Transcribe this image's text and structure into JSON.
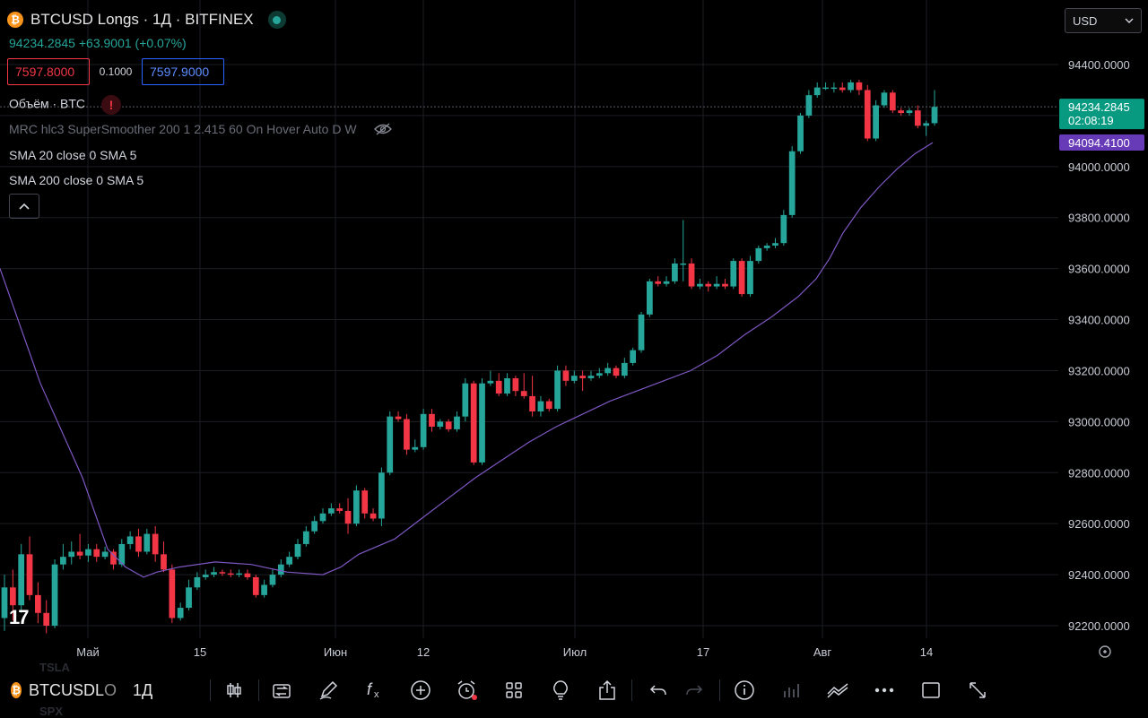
{
  "header": {
    "coin_glyph": "₿",
    "title": "BTCUSD Longs · 1Д · BITFINEX",
    "price_change": "94234.2845 +63.9001 (+0.07%)",
    "bid": "7597.8000",
    "spread": "0.1000",
    "ask": "7597.9000"
  },
  "indicators": {
    "volume": "Объём · BTC",
    "volume_warning": "!",
    "mrc": "MRC hlc3 SuperSmoother 200 1 2.415 60 On Hover Auto D W",
    "sma1": "SMA 20 close 0 SMA 5",
    "sma2": "SMA 200 close 0 SMA 5"
  },
  "currency_select": {
    "value": "USD"
  },
  "logo": "17",
  "background_symbols": [
    "TSLA",
    "SPX"
  ],
  "price_axis": {
    "ticks": [
      "94400.0000",
      "94200.0000",
      "94000.0000",
      "93800.0000",
      "93600.0000",
      "93400.0000",
      "93200.0000",
      "93000.0000",
      "92800.0000",
      "92600.0000",
      "92400.0000",
      "92200.0000"
    ],
    "last_price_label": "94234.2845",
    "countdown_label": "02:08:19",
    "sma_label": "94094.4100"
  },
  "time_axis": {
    "labels": [
      "Май",
      "15",
      "Июн",
      "12",
      "Июл",
      "17",
      "Авг",
      "14"
    ]
  },
  "colors": {
    "up": "#26a69a",
    "down": "#f23645",
    "sma": "#7e57c2",
    "grid": "#1c1e24",
    "axis_text": "#c9ccd6"
  },
  "chart_data": {
    "type": "candlestick",
    "ylim": [
      92150,
      94520
    ],
    "last_price": 94234.2845,
    "sma_last": 94094.41,
    "candles": [
      [
        92230,
        92350,
        92180,
        92400
      ],
      [
        92350,
        92280,
        92220,
        92420
      ],
      [
        92280,
        92480,
        92250,
        92520
      ],
      [
        92480,
        92320,
        92300,
        92550
      ],
      [
        92320,
        92250,
        92210,
        92370
      ],
      [
        92250,
        92200,
        92170,
        92300
      ],
      [
        92200,
        92440,
        92190,
        92460
      ],
      [
        92440,
        92470,
        92420,
        92520
      ],
      [
        92470,
        92490,
        92440,
        92530
      ],
      [
        92490,
        92475,
        92460,
        92560
      ],
      [
        92475,
        92500,
        92450,
        92520
      ],
      [
        92500,
        92470,
        92450,
        92520
      ],
      [
        92470,
        92490,
        92460,
        92510
      ],
      [
        92490,
        92440,
        92420,
        92500
      ],
      [
        92440,
        92520,
        92430,
        92540
      ],
      [
        92520,
        92550,
        92500,
        92570
      ],
      [
        92550,
        92490,
        92470,
        92580
      ],
      [
        92490,
        92560,
        92480,
        92580
      ],
      [
        92560,
        92480,
        92450,
        92590
      ],
      [
        92480,
        92420,
        92410,
        92530
      ],
      [
        92420,
        92230,
        92210,
        92440
      ],
      [
        92230,
        92270,
        92220,
        92290
      ],
      [
        92270,
        92350,
        92260,
        92380
      ],
      [
        92350,
        92390,
        92340,
        92410
      ],
      [
        92390,
        92400,
        92380,
        92420
      ],
      [
        92400,
        92410,
        92390,
        92430
      ],
      [
        92410,
        92405,
        92395,
        92420
      ],
      [
        92405,
        92400,
        92390,
        92420
      ],
      [
        92400,
        92405,
        92390,
        92420
      ],
      [
        92405,
        92390,
        92380,
        92420
      ],
      [
        92390,
        92320,
        92310,
        92400
      ],
      [
        92320,
        92360,
        92310,
        92380
      ],
      [
        92360,
        92400,
        92350,
        92420
      ],
      [
        92400,
        92440,
        92390,
        92460
      ],
      [
        92440,
        92470,
        92430,
        92490
      ],
      [
        92470,
        92520,
        92460,
        92540
      ],
      [
        92520,
        92570,
        92510,
        92590
      ],
      [
        92570,
        92610,
        92560,
        92630
      ],
      [
        92610,
        92640,
        92600,
        92660
      ],
      [
        92640,
        92660,
        92630,
        92680
      ],
      [
        92660,
        92650,
        92640,
        92680
      ],
      [
        92650,
        92600,
        92560,
        92700
      ],
      [
        92600,
        92730,
        92590,
        92750
      ],
      [
        92730,
        92640,
        92620,
        92740
      ],
      [
        92640,
        92620,
        92610,
        92660
      ],
      [
        92620,
        92800,
        92590,
        92820
      ],
      [
        92800,
        93020,
        92790,
        93040
      ],
      [
        93020,
        93010,
        93000,
        93040
      ],
      [
        93010,
        92890,
        92870,
        93030
      ],
      [
        92890,
        92900,
        92880,
        92930
      ],
      [
        92900,
        93030,
        92890,
        93050
      ],
      [
        93030,
        92980,
        92960,
        93050
      ],
      [
        92980,
        93000,
        92970,
        93010
      ],
      [
        93000,
        92970,
        92960,
        93010
      ],
      [
        92970,
        93020,
        92960,
        93040
      ],
      [
        93020,
        93150,
        93000,
        93170
      ],
      [
        93150,
        92840,
        92830,
        93160
      ],
      [
        92840,
        93150,
        92830,
        93170
      ],
      [
        93150,
        93160,
        93140,
        93200
      ],
      [
        93160,
        93110,
        93100,
        93190
      ],
      [
        93110,
        93170,
        93100,
        93190
      ],
      [
        93170,
        93120,
        93100,
        93180
      ],
      [
        93120,
        93100,
        93090,
        93190
      ],
      [
        93100,
        93040,
        93020,
        93180
      ],
      [
        93040,
        93080,
        93020,
        93100
      ],
      [
        93080,
        93050,
        93040,
        93090
      ],
      [
        93050,
        93200,
        93040,
        93220
      ],
      [
        93200,
        93160,
        93140,
        93220
      ],
      [
        93160,
        93180,
        93150,
        93200
      ],
      [
        93180,
        93170,
        93120,
        93200
      ],
      [
        93170,
        93180,
        93160,
        93200
      ],
      [
        93180,
        93190,
        93170,
        93210
      ],
      [
        93190,
        93210,
        93180,
        93230
      ],
      [
        93210,
        93180,
        93170,
        93220
      ],
      [
        93180,
        93230,
        93170,
        93250
      ],
      [
        93230,
        93280,
        93220,
        93290
      ],
      [
        93280,
        93420,
        93270,
        93430
      ],
      [
        93420,
        93550,
        93410,
        93560
      ],
      [
        93550,
        93540,
        93530,
        93570
      ],
      [
        93540,
        93550,
        93530,
        93570
      ],
      [
        93550,
        93620,
        93540,
        93640
      ],
      [
        93620,
        93620,
        93550,
        93790
      ],
      [
        93620,
        93530,
        93520,
        93640
      ],
      [
        93530,
        93540,
        93520,
        93560
      ],
      [
        93540,
        93530,
        93510,
        93550
      ],
      [
        93530,
        93540,
        93520,
        93570
      ],
      [
        93540,
        93530,
        93520,
        93560
      ],
      [
        93530,
        93630,
        93520,
        93640
      ],
      [
        93630,
        93500,
        93490,
        93640
      ],
      [
        93500,
        93630,
        93490,
        93650
      ],
      [
        93630,
        93680,
        93620,
        93690
      ],
      [
        93680,
        93690,
        93670,
        93700
      ],
      [
        93690,
        93700,
        93680,
        93720
      ],
      [
        93700,
        93810,
        93690,
        93830
      ],
      [
        93810,
        94060,
        93800,
        94080
      ],
      [
        94060,
        94200,
        94050,
        94210
      ],
      [
        94200,
        94280,
        94190,
        94300
      ],
      [
        94280,
        94310,
        94270,
        94330
      ],
      [
        94310,
        94310,
        94300,
        94330
      ],
      [
        94310,
        94310,
        94290,
        94330
      ],
      [
        94310,
        94300,
        94290,
        94330
      ],
      [
        94300,
        94330,
        94290,
        94340
      ],
      [
        94330,
        94300,
        94280,
        94340
      ],
      [
        94300,
        94110,
        94100,
        94320
      ],
      [
        94110,
        94240,
        94100,
        94260
      ],
      [
        94240,
        94290,
        94230,
        94300
      ],
      [
        94290,
        94220,
        94210,
        94300
      ],
      [
        94220,
        94210,
        94200,
        94230
      ],
      [
        94210,
        94220,
        94200,
        94230
      ],
      [
        94220,
        94160,
        94150,
        94240
      ],
      [
        94160,
        94170,
        94120,
        94180
      ],
      [
        94170,
        94234,
        94160,
        94300
      ]
    ],
    "sma": [
      [
        0,
        93600
      ],
      [
        45,
        93150
      ],
      [
        92,
        92780
      ],
      [
        120,
        92500
      ],
      [
        140,
        92430
      ],
      [
        160,
        92390
      ],
      [
        175,
        92410
      ],
      [
        200,
        92430
      ],
      [
        240,
        92450
      ],
      [
        280,
        92440
      ],
      [
        320,
        92410
      ],
      [
        360,
        92400
      ],
      [
        380,
        92430
      ],
      [
        400,
        92480
      ],
      [
        440,
        92540
      ],
      [
        470,
        92620
      ],
      [
        500,
        92700
      ],
      [
        530,
        92780
      ],
      [
        560,
        92850
      ],
      [
        590,
        92920
      ],
      [
        620,
        92980
      ],
      [
        650,
        93030
      ],
      [
        680,
        93080
      ],
      [
        710,
        93120
      ],
      [
        740,
        93160
      ],
      [
        770,
        93200
      ],
      [
        800,
        93260
      ],
      [
        830,
        93340
      ],
      [
        860,
        93410
      ],
      [
        890,
        93490
      ],
      [
        910,
        93560
      ],
      [
        925,
        93640
      ],
      [
        940,
        93740
      ],
      [
        960,
        93840
      ],
      [
        980,
        93920
      ],
      [
        1000,
        93990
      ],
      [
        1020,
        94050
      ],
      [
        1040,
        94094
      ]
    ]
  }
}
